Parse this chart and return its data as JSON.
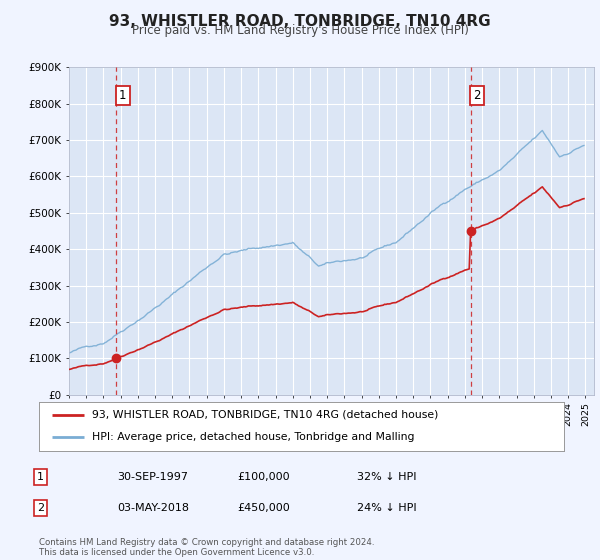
{
  "title": "93, WHISTLER ROAD, TONBRIDGE, TN10 4RG",
  "subtitle": "Price paid vs. HM Land Registry's House Price Index (HPI)",
  "background_color": "#f0f4ff",
  "plot_bg_color": "#dce6f5",
  "grid_color": "#ffffff",
  "sale1_date": 1997.75,
  "sale1_price": 100000,
  "sale2_date": 2018.33,
  "sale2_price": 450000,
  "legend_line1": "93, WHISTLER ROAD, TONBRIDGE, TN10 4RG (detached house)",
  "legend_line2": "HPI: Average price, detached house, Tonbridge and Malling",
  "annotation1_label": "1",
  "annotation1_text": "30-SEP-1997",
  "annotation1_price": "£100,000",
  "annotation1_hpi": "32% ↓ HPI",
  "annotation2_label": "2",
  "annotation2_text": "03-MAY-2018",
  "annotation2_price": "£450,000",
  "annotation2_hpi": "24% ↓ HPI",
  "footer": "Contains HM Land Registry data © Crown copyright and database right 2024.\nThis data is licensed under the Open Government Licence v3.0.",
  "hpi_color": "#7aadd4",
  "price_color": "#cc2222",
  "dot_color": "#cc2222",
  "vline_color": "#cc2222",
  "ylim": [
    0,
    900000
  ],
  "xlim": [
    1995.0,
    2025.5
  ],
  "yticks": [
    0,
    100000,
    200000,
    300000,
    400000,
    500000,
    600000,
    700000,
    800000,
    900000
  ],
  "ytick_labels": [
    "£0",
    "£100K",
    "£200K",
    "£300K",
    "£400K",
    "£500K",
    "£600K",
    "£700K",
    "£800K",
    "£900K"
  ]
}
